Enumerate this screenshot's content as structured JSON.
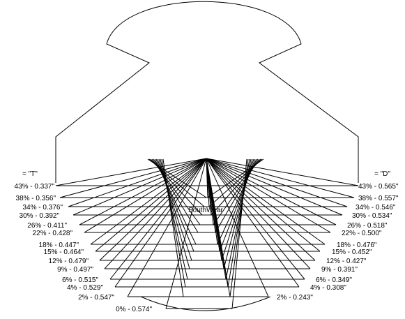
{
  "diagram": {
    "center_label": "SouthWear",
    "left_header": "= \"T\"",
    "right_header": "= \"D\"",
    "left_levels": [
      "43% - 0.337\"",
      "38% - 0.356\"",
      "34% - 0.376\"",
      "30% - 0.392\"",
      "26% - 0.411\"",
      "22% - 0.428\"",
      "18% - 0.447\"",
      "15% - 0.464\"",
      "12% - 0.479\"",
      "9% - 0.497\"",
      "6% - 0.515\"",
      "4% - 0.529\"",
      "2% - 0.547\"",
      "0% - 0.574\""
    ],
    "right_levels": [
      "43% - 0.565\"",
      "38% - 0.557\"",
      "34% - 0.546\"",
      "30% - 0.534\"",
      "26% - 0.518\"",
      "22% - 0.500\"",
      "18% - 0.476\"",
      "15% - 0.452\"",
      "12% - 0.427\"",
      "9% - 0.391\"",
      "6% - 0.349\"",
      "4% - 0.308\"",
      "2% - 0.243\""
    ]
  }
}
